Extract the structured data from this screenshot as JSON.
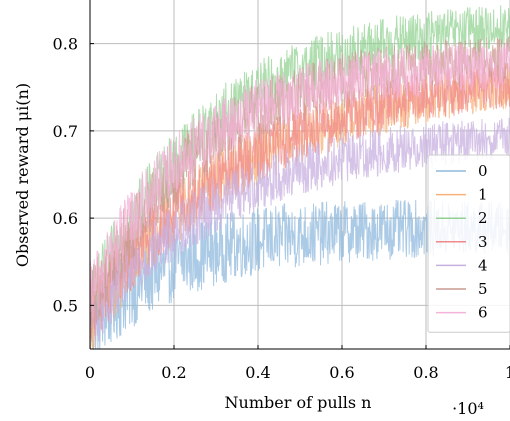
{
  "chart_data": {
    "type": "line",
    "xlabel": "Number of pulls n",
    "ylabel": "Observed reward μi(n)",
    "x_scale_note": "·10⁴",
    "xlim": [
      0,
      1
    ],
    "ylim": [
      0.45,
      0.85
    ],
    "x_ticks": [
      "0",
      "0.2",
      "0.4",
      "0.6",
      "0.8",
      "1"
    ],
    "y_ticks": [
      "0.5",
      "0.6",
      "0.7",
      "0.8"
    ],
    "x_tick_values": [
      0,
      0.2,
      0.4,
      0.6,
      0.8,
      1
    ],
    "y_tick_values": [
      0.5,
      0.6,
      0.7,
      0.8
    ],
    "grid": true,
    "legend_position": "lower-right",
    "series": [
      {
        "name": "0",
        "color": "#8fb8dc",
        "start": 0.47,
        "plateau": 0.59,
        "rate": 5.0,
        "noise": 0.025
      },
      {
        "name": "1",
        "color": "#f7b27a",
        "start": 0.48,
        "plateau": 0.77,
        "rate": 2.7,
        "noise": 0.022
      },
      {
        "name": "2",
        "color": "#93d193",
        "start": 0.5,
        "plateau": 0.83,
        "rate": 3.4,
        "noise": 0.022
      },
      {
        "name": "3",
        "color": "#f08a8a",
        "start": 0.49,
        "plateau": 0.775,
        "rate": 2.6,
        "noise": 0.022
      },
      {
        "name": "4",
        "color": "#c8b0e0",
        "start": 0.48,
        "plateau": 0.7,
        "rate": 3.2,
        "noise": 0.02
      },
      {
        "name": "5",
        "color": "#c99a90",
        "start": 0.5,
        "plateau": 0.79,
        "rate": 3.6,
        "noise": 0.022
      },
      {
        "name": "6",
        "color": "#f4b3d8",
        "start": 0.51,
        "plateau": 0.78,
        "rate": 4.0,
        "noise": 0.022
      }
    ]
  }
}
